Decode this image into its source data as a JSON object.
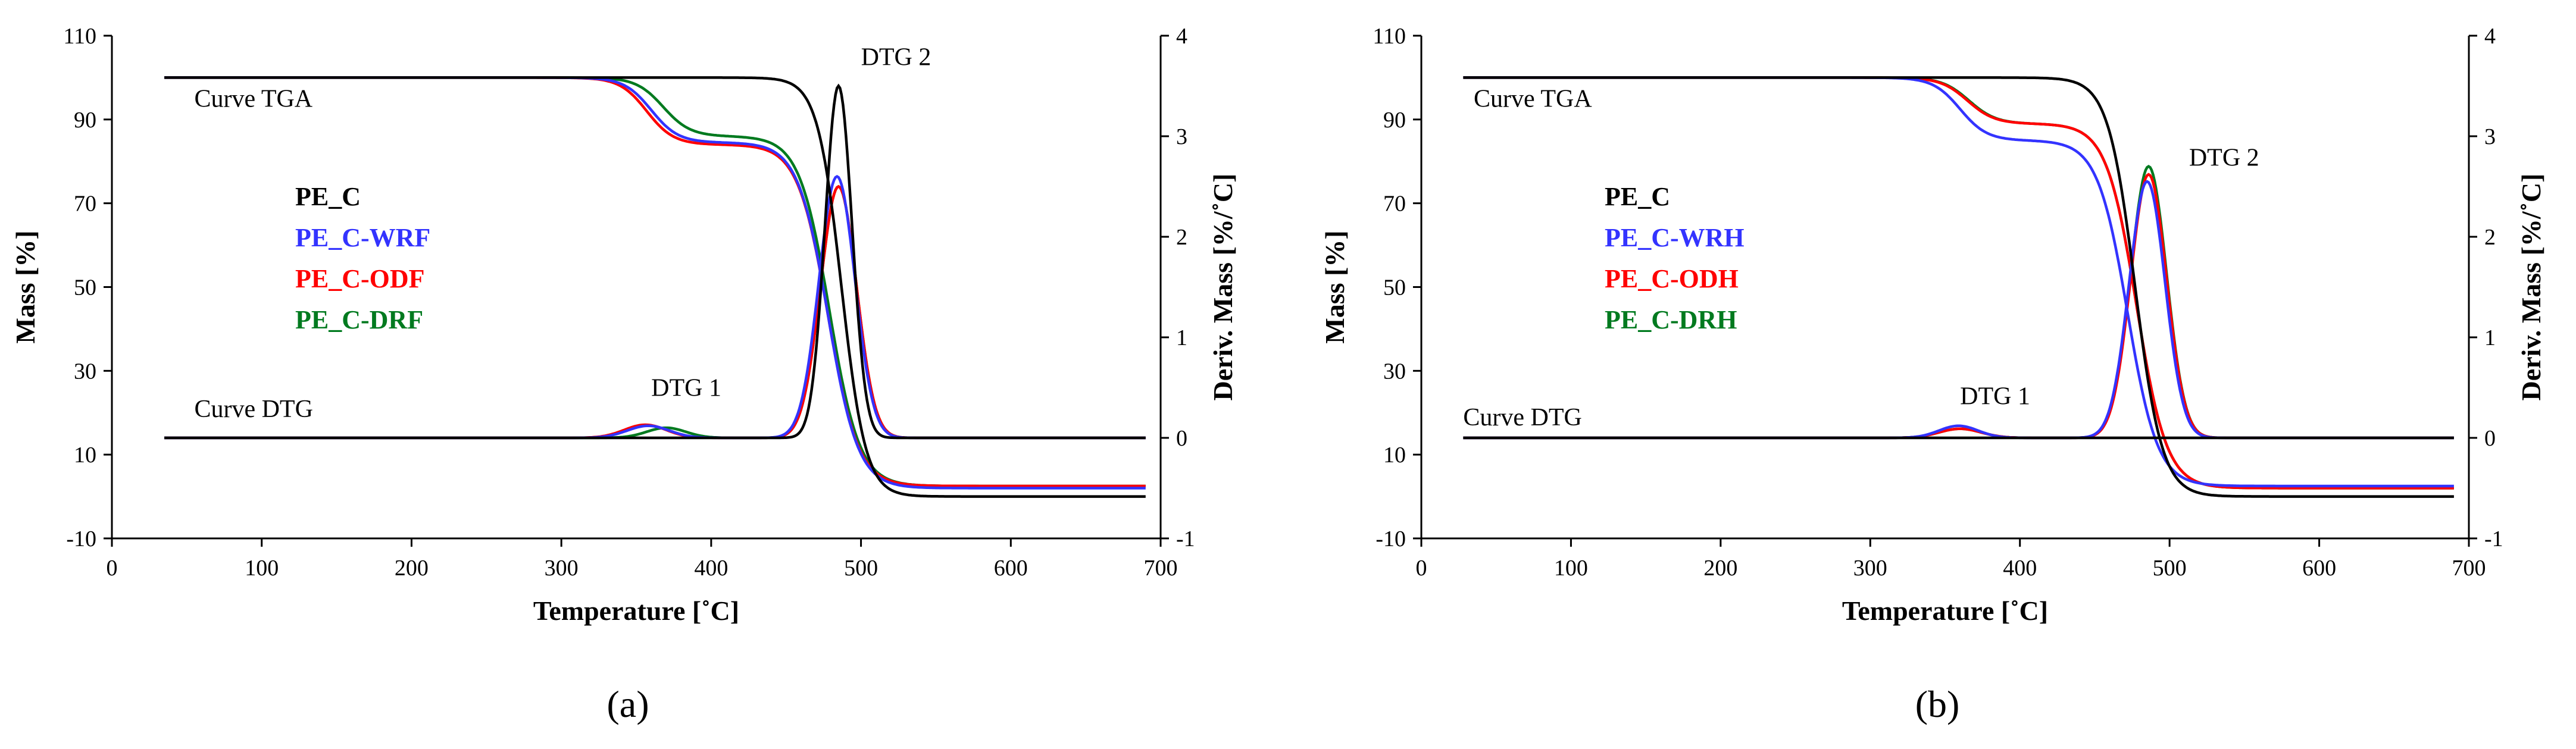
{
  "colors": {
    "PE_C": "#000000",
    "blue": "#3333ff",
    "red": "#ff0000",
    "green": "#007a1f",
    "axis": "#000000"
  },
  "chart_data": [
    {
      "id": "a",
      "panel_label": "(a)",
      "type": "line",
      "xlabel": "Temperature [˚C]",
      "ylabel_left": "Mass  [%]",
      "ylabel_right": "Deriv.  Mass  [%/˚C]",
      "xlim": [
        0,
        700
      ],
      "x_ticks": [
        0,
        100,
        200,
        300,
        400,
        500,
        600,
        700
      ],
      "ylim_left": [
        -10,
        110
      ],
      "y_ticks_left": [
        -10,
        10,
        30,
        50,
        70,
        90,
        110
      ],
      "ylim_right": [
        -1,
        4
      ],
      "y_ticks_right": [
        -1,
        0,
        1,
        2,
        3,
        4
      ],
      "annotations": [
        {
          "text": "Curve TGA",
          "x": 55,
          "y": 93
        },
        {
          "text": "Curve DTG",
          "x": 55,
          "y": 19
        },
        {
          "text": "DTG 1",
          "x": 360,
          "y": 24
        },
        {
          "text": "DTG 2",
          "x": 500,
          "y": 103
        }
      ],
      "legend": [
        {
          "label": "PE_C",
          "color_key": "PE_C"
        },
        {
          "label": "PE_C-WRF",
          "color_key": "blue"
        },
        {
          "label": "PE_C-ODF",
          "color_key": "red"
        },
        {
          "label": "PE_C-DRF",
          "color_key": "green"
        }
      ],
      "series": [
        {
          "name": "PE_C",
          "color_key": "PE_C",
          "tga": {
            "start": 100,
            "steps": [
              {
                "center": 487,
                "width": 8,
                "drop": 100
              }
            ],
            "x0": 35,
            "x1": 690
          },
          "dtg": {
            "base": 0,
            "peaks": [
              {
                "center": 485,
                "amp": 3.5,
                "w": 9
              }
            ]
          }
        },
        {
          "name": "PE_C-WRF",
          "color_key": "blue",
          "tga": {
            "start": 100,
            "steps": [
              {
                "center": 360,
                "width": 9,
                "drop": 15.5
              },
              {
                "center": 478,
                "width": 10,
                "drop": 82.5
              }
            ],
            "x0": 35,
            "x1": 690
          },
          "dtg": {
            "base": 0,
            "peaks": [
              {
                "center": 358,
                "amp": 0.12,
                "w": 14
              },
              {
                "center": 484,
                "amp": 2.6,
                "w": 12
              }
            ]
          }
        },
        {
          "name": "PE_C-ODF",
          "color_key": "red",
          "tga": {
            "start": 100,
            "steps": [
              {
                "center": 357,
                "width": 9,
                "drop": 16
              },
              {
                "center": 478,
                "width": 10,
                "drop": 81.5
              }
            ],
            "x0": 35,
            "x1": 690
          },
          "dtg": {
            "base": 0,
            "peaks": [
              {
                "center": 356,
                "amp": 0.13,
                "w": 14
              },
              {
                "center": 485,
                "amp": 2.5,
                "w": 12
              }
            ]
          }
        },
        {
          "name": "PE_C-DRF",
          "color_key": "green",
          "tga": {
            "start": 100,
            "steps": [
              {
                "center": 368,
                "width": 9,
                "drop": 14
              },
              {
                "center": 479,
                "width": 10,
                "drop": 83.5
              }
            ],
            "x0": 35,
            "x1": 690
          },
          "dtg": {
            "base": 0,
            "peaks": [
              {
                "center": 370,
                "amp": 0.1,
                "w": 13
              },
              {
                "center": 485,
                "amp": 2.5,
                "w": 12
              }
            ]
          }
        }
      ]
    },
    {
      "id": "b",
      "panel_label": "(b)",
      "type": "line",
      "xlabel": "Temperature [˚C]",
      "ylabel_left": "Mass  [%]",
      "ylabel_right": "Deriv.  Mass  [%/˚C]",
      "xlim": [
        0,
        700
      ],
      "x_ticks": [
        0,
        100,
        200,
        300,
        400,
        500,
        600,
        700
      ],
      "ylim_left": [
        -10,
        110
      ],
      "y_ticks_left": [
        -10,
        10,
        30,
        50,
        70,
        90,
        110
      ],
      "ylim_right": [
        -1,
        4
      ],
      "y_ticks_right": [
        -1,
        0,
        1,
        2,
        3,
        4
      ],
      "annotations": [
        {
          "text": "Curve TGA",
          "x": 35,
          "y": 93
        },
        {
          "text": "Curve DTG",
          "x": 28,
          "y": 17
        },
        {
          "text": "DTG 1",
          "x": 360,
          "y": 22
        },
        {
          "text": "DTG 2",
          "x": 513,
          "y": 79
        }
      ],
      "legend": [
        {
          "label": "PE_C",
          "color_key": "PE_C"
        },
        {
          "label": "PE_C-WRH",
          "color_key": "blue"
        },
        {
          "label": "PE_C-ODH",
          "color_key": "red"
        },
        {
          "label": "PE_C-DRH",
          "color_key": "green"
        }
      ],
      "series": [
        {
          "name": "PE_C",
          "color_key": "PE_C",
          "tga": {
            "start": 100,
            "steps": [
              {
                "center": 477,
                "width": 9,
                "drop": 100
              }
            ],
            "x0": 28,
            "x1": 690
          },
          "dtg": {
            "base": 0,
            "peaks": []
          }
        },
        {
          "name": "PE_C-WRH",
          "color_key": "blue",
          "tga": {
            "start": 100,
            "steps": [
              {
                "center": 360,
                "width": 9,
                "drop": 15
              },
              {
                "center": 472,
                "width": 10,
                "drop": 82.5
              }
            ],
            "x0": 28,
            "x1": 690
          },
          "dtg": {
            "base": 0,
            "peaks": [
              {
                "center": 359,
                "amp": 0.12,
                "w": 13
              },
              {
                "center": 485,
                "amp": 2.55,
                "w": 12
              }
            ]
          }
        },
        {
          "name": "PE_C-ODH",
          "color_key": "red",
          "tga": {
            "start": 100,
            "steps": [
              {
                "center": 365,
                "width": 9,
                "drop": 11
              },
              {
                "center": 478,
                "width": 10,
                "drop": 87
              }
            ],
            "x0": 28,
            "x1": 690
          },
          "dtg": {
            "base": 0,
            "peaks": [
              {
                "center": 360,
                "amp": 0.09,
                "w": 14
              },
              {
                "center": 486,
                "amp": 2.62,
                "w": 12
              }
            ]
          }
        },
        {
          "name": "PE_C-DRH",
          "color_key": "green",
          "tga": {
            "start": 100,
            "steps": [
              {
                "center": 366,
                "width": 9,
                "drop": 11
              },
              {
                "center": 478,
                "width": 10,
                "drop": 87
              }
            ],
            "x0": 28,
            "x1": 690
          },
          "dtg": {
            "base": 0,
            "peaks": [
              {
                "center": 360,
                "amp": 0.09,
                "w": 14
              },
              {
                "center": 486,
                "amp": 2.7,
                "w": 12
              }
            ]
          }
        }
      ]
    }
  ]
}
